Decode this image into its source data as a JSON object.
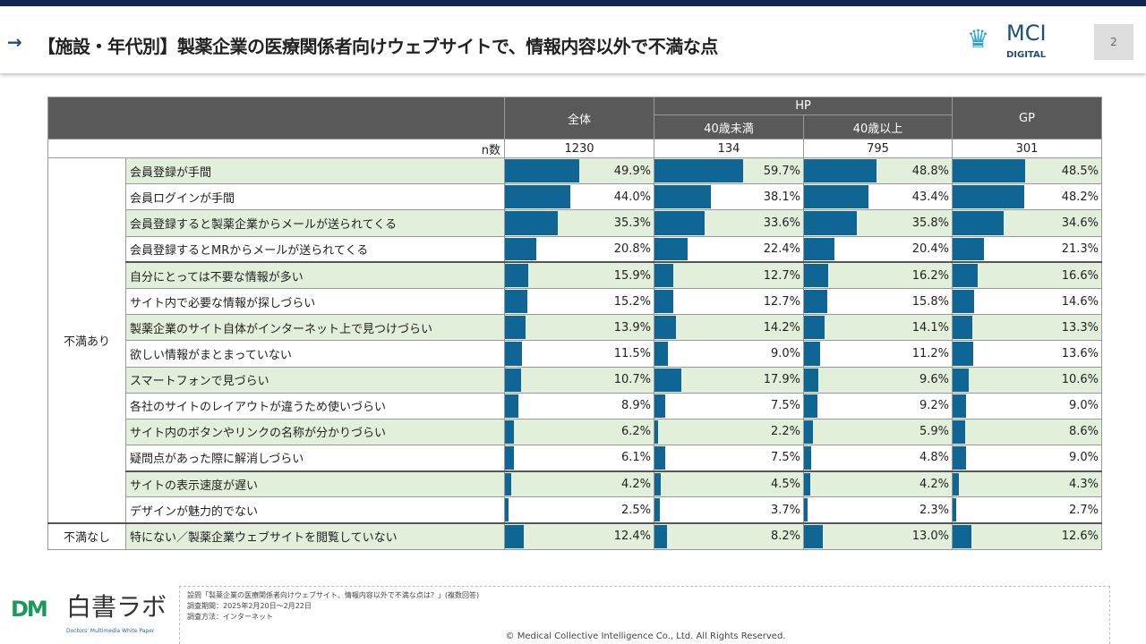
{
  "header": {
    "title": "【施設・年代別】製薬企業の医療関係者向けウェブサイトで、情報内容以外で不満な点",
    "logo_text": "MCI",
    "logo_sub": "DIGITAL",
    "page": "2"
  },
  "table": {
    "col_all": "全体",
    "col_hp": "HP",
    "col_hp_young": "40歳未満",
    "col_hp_old": "40歳以上",
    "col_gp": "GP",
    "n_label": "n数",
    "n": [
      "1230",
      "134",
      "795",
      "301"
    ],
    "groups": [
      {
        "label": "不満あり",
        "rows": 14
      },
      {
        "label": "不満なし",
        "rows": 1
      }
    ],
    "rows": [
      {
        "label": "会員登録が手間",
        "values": [
          49.9,
          59.7,
          48.8,
          48.5
        ]
      },
      {
        "label": "会員ログインが手間",
        "values": [
          44.0,
          38.1,
          43.4,
          48.2
        ]
      },
      {
        "label": "会員登録すると製薬企業からメールが送られてくる",
        "values": [
          35.3,
          33.6,
          35.8,
          34.6
        ]
      },
      {
        "label": "会員登録するとMRからメールが送られてくる",
        "values": [
          20.8,
          22.4,
          20.4,
          21.3
        ]
      },
      {
        "label": "自分にとっては不要な情報が多い",
        "values": [
          15.9,
          12.7,
          16.2,
          16.6
        ]
      },
      {
        "label": "サイト内で必要な情報が探しづらい",
        "values": [
          15.2,
          12.7,
          15.8,
          14.6
        ]
      },
      {
        "label": "製薬企業のサイト自体がインターネット上で見つけづらい",
        "values": [
          13.9,
          14.2,
          14.1,
          13.3
        ]
      },
      {
        "label": "欲しい情報がまとまっていない",
        "values": [
          11.5,
          9.0,
          11.2,
          13.6
        ]
      },
      {
        "label": "スマートフォンで見づらい",
        "values": [
          10.7,
          17.9,
          9.6,
          10.6
        ]
      },
      {
        "label": "各社のサイトのレイアウトが違うため使いづらい",
        "values": [
          8.9,
          7.5,
          9.2,
          9.0
        ]
      },
      {
        "label": "サイト内のボタンやリンクの名称が分かりづらい",
        "values": [
          6.2,
          2.2,
          5.9,
          8.6
        ]
      },
      {
        "label": "疑問点があった際に解消しづらい",
        "values": [
          6.1,
          7.5,
          4.8,
          9.0
        ]
      },
      {
        "label": "サイトの表示速度が遅い",
        "values": [
          4.2,
          4.5,
          4.2,
          4.3
        ]
      },
      {
        "label": "デザインが魅力的でない",
        "values": [
          2.5,
          3.7,
          2.3,
          2.7
        ]
      },
      {
        "label": "特にない／製薬企業ウェブサイトを閲覧していない",
        "values": [
          12.4,
          8.2,
          13.0,
          12.6
        ]
      }
    ],
    "bar_color": "#0f6594",
    "stripe_color": "#e2efda"
  },
  "footer": {
    "logo_text": "白書ラボ",
    "logo_sub": "Doctors' Multimedia White Paper",
    "notes": [
      "設問「製薬企業の医療関係者向けウェブサイト、情報内容以外で不満な点は？」(複数回答)",
      "調査期間：2025年2月20日～2月22日",
      "調査方法：インターネット"
    ],
    "copyright": "©  Medical Collective Intelligence Co., Ltd.  All Rights Reserved."
  }
}
